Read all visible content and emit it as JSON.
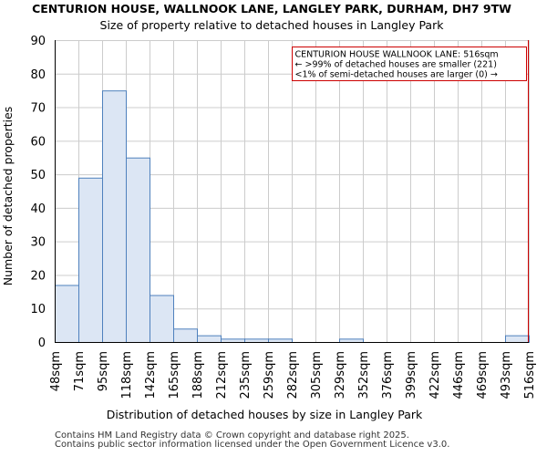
{
  "chart_data": {
    "type": "bar",
    "title": "CENTURION HOUSE, WALLNOOK LANE, LANGLEY PARK, DURHAM, DH7 9TW",
    "subtitle": "Size of property relative to detached houses in Langley Park",
    "xlabel": "Distribution of detached houses by size in Langley Park",
    "ylabel": "Number of detached properties",
    "tick_labels": [
      "48sqm",
      "71sqm",
      "95sqm",
      "118sqm",
      "142sqm",
      "165sqm",
      "188sqm",
      "212sqm",
      "235sqm",
      "259sqm",
      "282sqm",
      "305sqm",
      "329sqm",
      "352sqm",
      "376sqm",
      "399sqm",
      "422sqm",
      "446sqm",
      "469sqm",
      "493sqm",
      "516sqm"
    ],
    "values": [
      17,
      49,
      75,
      55,
      14,
      4,
      2,
      1,
      1,
      1,
      0,
      0,
      1,
      0,
      0,
      0,
      0,
      0,
      0,
      2
    ],
    "yticks": [
      0,
      10,
      20,
      30,
      40,
      50,
      60,
      70,
      80,
      90
    ],
    "ylim": [
      0,
      90
    ],
    "grid": true,
    "bar_color": "#dce6f4",
    "bar_edge_color": "#4f81bd",
    "marker": {
      "value_index": 20,
      "color": "#cc0000"
    },
    "annotation": {
      "lines": [
        "CENTURION HOUSE WALLNOOK LANE: 516sqm",
        "← >99% of detached houses are smaller (221)",
        "<1% of semi-detached houses are larger (0) →"
      ],
      "placement": "top-right"
    }
  },
  "footer": {
    "line1": "Contains HM Land Registry data © Crown copyright and database right 2025.",
    "line2": "Contains public sector information licensed under the Open Government Licence v3.0."
  }
}
